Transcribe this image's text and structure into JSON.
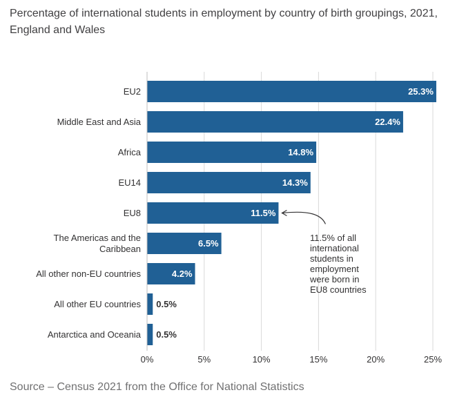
{
  "title": "Percentage of international students in employment by country of birth groupings, 2021, England and Wales",
  "source": "Source – Census 2021 from the Office for National Statistics",
  "colors": {
    "bar": "#206095",
    "grid": "#d9d9d9",
    "axis": "#bcbcbd"
  },
  "chart_data": {
    "type": "bar",
    "orientation": "horizontal",
    "categories": [
      [
        "EU2"
      ],
      [
        "Middle East and Asia"
      ],
      [
        "Africa"
      ],
      [
        "EU14"
      ],
      [
        "EU8"
      ],
      [
        "The Americas and the",
        "Caribbean"
      ],
      [
        "All other non-EU countries"
      ],
      [
        "All other EU countries"
      ],
      [
        "Antarctica and Oceania"
      ]
    ],
    "values": [
      25.3,
      22.4,
      14.8,
      14.3,
      11.5,
      6.5,
      4.2,
      0.5,
      0.5
    ],
    "value_labels": [
      "25.3%",
      "22.4%",
      "14.8%",
      "14.3%",
      "11.5%",
      "6.5%",
      "4.2%",
      "0.5%",
      "0.5%"
    ],
    "xlim": [
      0,
      25
    ],
    "xticks": [
      0,
      5,
      10,
      15,
      20,
      25
    ],
    "xtick_labels": [
      "0%",
      "5%",
      "10%",
      "15%",
      "20%",
      "25%"
    ],
    "grid": true,
    "annotation": {
      "category_index": 4,
      "lines": [
        "11.5% of all",
        "international",
        "students in",
        "employment",
        "were born in",
        "EU8 countries"
      ]
    }
  }
}
